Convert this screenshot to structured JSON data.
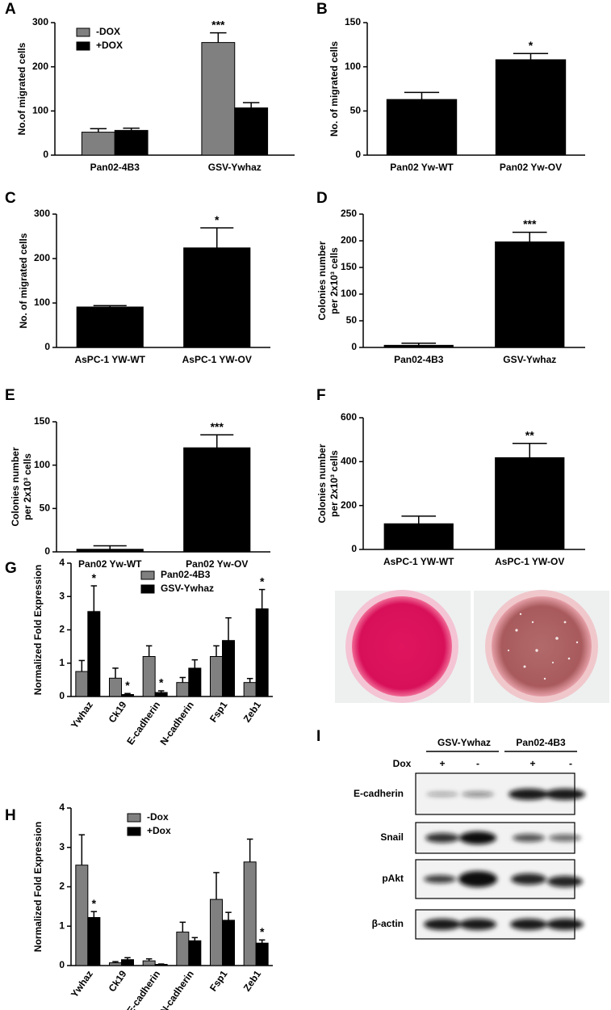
{
  "chart_data": [
    {
      "type": "bar",
      "panel": "A",
      "ylabel": "No.of migrated cells",
      "categories": [
        "Pan02-4B3",
        "GSV-Ywhaz"
      ],
      "series": [
        {
          "name": "-DOX",
          "color": "#808080",
          "values": [
            52,
            255
          ],
          "errors": [
            8,
            22
          ],
          "annotations": [
            null,
            "***"
          ]
        },
        {
          "name": "+DOX",
          "color": "#000000",
          "values": [
            56,
            107
          ],
          "errors": [
            5,
            12
          ]
        }
      ],
      "ylim": [
        0,
        300
      ],
      "yticks": [
        0,
        100,
        200,
        300
      ]
    },
    {
      "type": "bar",
      "panel": "B",
      "ylabel": "No. of migrated cells",
      "categories": [
        "Pan02 Yw-WT",
        "Pan02 Yw-OV"
      ],
      "values": [
        63,
        108
      ],
      "errors": [
        8,
        7
      ],
      "annotations": [
        null,
        "*"
      ],
      "color": "#000000",
      "ylim": [
        0,
        150
      ],
      "yticks": [
        0,
        50,
        100,
        150
      ]
    },
    {
      "type": "bar",
      "panel": "C",
      "ylabel": "No. of migrated cells",
      "categories": [
        "AsPC-1 YW-WT",
        "AsPC-1 YW-OV"
      ],
      "values": [
        91,
        224
      ],
      "errors": [
        3,
        45
      ],
      "annotations": [
        null,
        "*"
      ],
      "color": "#000000",
      "ylim": [
        0,
        300
      ],
      "yticks": [
        0,
        100,
        200,
        300
      ]
    },
    {
      "type": "bar",
      "panel": "D",
      "ylabel": [
        "Colonies number",
        "per 2x10³ cells"
      ],
      "categories": [
        "Pan02-4B3",
        "GSV-Ywhaz"
      ],
      "values": [
        4,
        198
      ],
      "errors": [
        4,
        18
      ],
      "annotations": [
        null,
        "***"
      ],
      "color": "#000000",
      "ylim": [
        0,
        250
      ],
      "yticks": [
        0,
        50,
        100,
        150,
        200,
        250
      ]
    },
    {
      "type": "bar",
      "panel": "E",
      "ylabel": [
        "Colonies number",
        "per 2x10³ cells"
      ],
      "categories": [
        "Pan02 Yw-WT",
        "Pan02 Yw-OV"
      ],
      "values": [
        3,
        120
      ],
      "errors": [
        4,
        15
      ],
      "annotations": [
        null,
        "***"
      ],
      "color": "#000000",
      "ylim": [
        0,
        150
      ],
      "yticks": [
        0,
        50,
        100,
        150
      ]
    },
    {
      "type": "bar",
      "panel": "F",
      "ylabel": [
        "Colonies number",
        "per 2x10³ cells"
      ],
      "categories": [
        "AsPC-1 YW-WT",
        "AsPC-1 YW-OV"
      ],
      "values": [
        117,
        418
      ],
      "errors": [
        35,
        65
      ],
      "annotations": [
        null,
        "**"
      ],
      "color": "#000000",
      "ylim": [
        0,
        600
      ],
      "yticks": [
        0,
        200,
        400,
        600
      ]
    },
    {
      "type": "bar",
      "panel": "G",
      "ylabel": "Normalized Fold Expression",
      "categories": [
        "Ywhaz",
        "Ck19",
        "E-cadherin",
        "N-cadherin",
        "Fsp1",
        "Zeb1"
      ],
      "series": [
        {
          "name": "Pan02-4B3",
          "color": "#808080",
          "values": [
            0.75,
            0.55,
            1.2,
            0.42,
            1.2,
            0.42
          ],
          "errors": [
            0.33,
            0.3,
            0.32,
            0.15,
            0.32,
            0.12
          ]
        },
        {
          "name": "GSV-Ywhaz",
          "color": "#000000",
          "values": [
            2.55,
            0.06,
            0.12,
            0.85,
            1.68,
            2.63
          ],
          "errors": [
            0.77,
            0.03,
            0.05,
            0.25,
            0.68,
            0.58
          ],
          "annotations": [
            "*",
            "*",
            "*",
            null,
            null,
            "*"
          ]
        }
      ],
      "ylim": [
        0,
        4
      ],
      "yticks": [
        0,
        1,
        2,
        3,
        4
      ]
    },
    {
      "type": "bar",
      "panel": "H",
      "ylabel": "Normalized Fold Expression",
      "categories": [
        "Ywhaz",
        "Ck19",
        "E-cadherin",
        "N-cadherin",
        "Fsp1",
        "Zeb1"
      ],
      "series": [
        {
          "name": "-Dox",
          "color": "#808080",
          "values": [
            2.55,
            0.07,
            0.12,
            0.85,
            1.68,
            2.63
          ],
          "errors": [
            0.77,
            0.03,
            0.05,
            0.25,
            0.68,
            0.58
          ]
        },
        {
          "name": "+Dox",
          "color": "#000000",
          "values": [
            1.22,
            0.15,
            0.03,
            0.63,
            1.15,
            0.57
          ],
          "errors": [
            0.15,
            0.05,
            0.01,
            0.08,
            0.2,
            0.08
          ],
          "annotations": [
            "*",
            null,
            null,
            null,
            null,
            "*"
          ]
        }
      ],
      "ylim": [
        0,
        4
      ],
      "yticks": [
        0,
        1,
        2,
        3,
        4
      ]
    }
  ],
  "blot": {
    "panel": "I",
    "groups": [
      "GSV-Ywhaz",
      "Pan02-4B3"
    ],
    "dox_label": "Dox",
    "dox": [
      "+",
      "-",
      "+",
      "-"
    ],
    "rows": [
      "E-cadherin",
      "Snail",
      "pAkt",
      "β-actin"
    ]
  }
}
